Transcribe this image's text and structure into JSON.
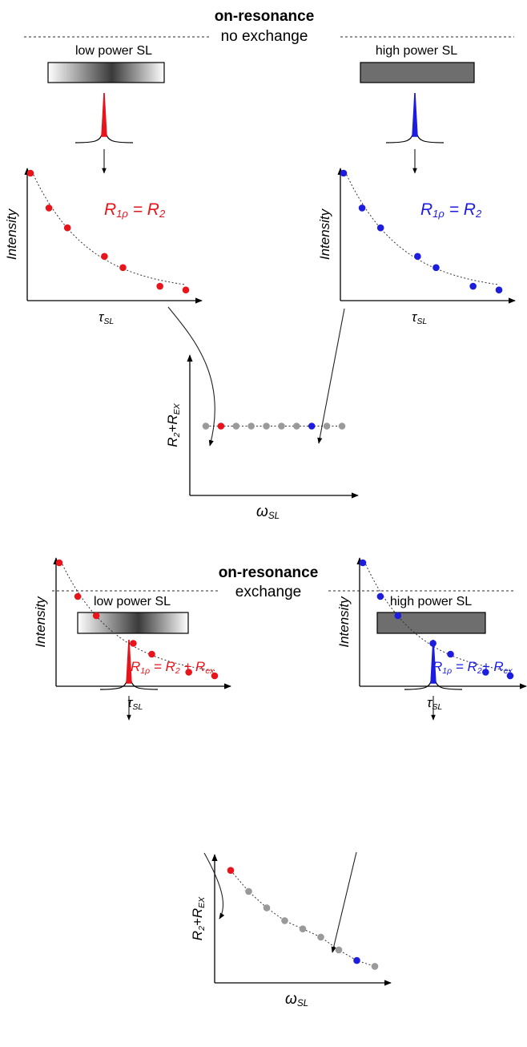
{
  "panels": [
    {
      "title": "on-resonance",
      "subtitle": "no exchange",
      "low_label": "low power SL",
      "high_label": "high power SL",
      "low_eq": {
        "lhs": "R",
        "lhs_sub": "1ρ",
        "mid": " = R",
        "mid_sub": "2",
        "tail": "",
        "tail_sub": ""
      },
      "high_eq": {
        "lhs": "R",
        "lhs_sub": "1ρ",
        "mid": " = R",
        "mid_sub": "2",
        "tail": "",
        "tail_sub": ""
      },
      "ylabel": "Intensity",
      "xlabel_main": "τ",
      "xlabel_sub": "SL",
      "disp_ylabel_main": "R",
      "disp_ylabel_sub1": "2",
      "disp_ylabel_plus": "+R",
      "disp_ylabel_sub2": "EX",
      "disp_xlabel_main": "ω",
      "disp_xlabel_sub": "SL"
    },
    {
      "title": "on-resonance",
      "subtitle": "exchange",
      "low_label": "low power SL",
      "high_label": "high power SL",
      "low_eq": {
        "lhs": "R",
        "lhs_sub": "1ρ",
        "mid": " = R",
        "mid_sub": "2",
        "tail": " + R",
        "tail_sub": "ex"
      },
      "high_eq": {
        "lhs": "R",
        "lhs_sub": "1ρ",
        "mid": " = R",
        "mid_sub": "2",
        "tail": "+ R",
        "tail_sub": "ex"
      },
      "ylabel": "Intensity",
      "xlabel_main": "τ",
      "xlabel_sub": "SL",
      "disp_ylabel_main": "R",
      "disp_ylabel_sub1": "2",
      "disp_ylabel_plus": "+R",
      "disp_ylabel_sub2": "EX",
      "disp_xlabel_main": "ω",
      "disp_xlabel_sub": "SL"
    }
  ],
  "colors": {
    "low": "#e8141b",
    "high": "#1d1de0",
    "grey": "#9a9a9a",
    "bar": "#6e6e6e"
  },
  "chart_data": [
    {
      "type": "scatter",
      "name": "panel1-low-decay",
      "x": [
        0,
        1,
        2,
        4,
        5,
        7,
        8.4
      ],
      "values": [
        100,
        72,
        56,
        33,
        24,
        9,
        6
      ]
    },
    {
      "type": "scatter",
      "name": "panel1-high-decay",
      "x": [
        0,
        1,
        2,
        4,
        5,
        7,
        8.4
      ],
      "values": [
        100,
        72,
        56,
        33,
        24,
        9,
        6
      ]
    },
    {
      "type": "scatter",
      "name": "panel1-dispersion",
      "x": [
        1,
        2,
        3,
        4,
        5,
        6,
        7,
        8,
        9,
        10
      ],
      "values": [
        50,
        50,
        50,
        50,
        50,
        50,
        50,
        50,
        50,
        50
      ],
      "highlight": {
        "low_index": 1,
        "high_index": 7
      }
    },
    {
      "type": "scatter",
      "name": "panel2-low-decay",
      "x": [
        0,
        1,
        2,
        4,
        5,
        7,
        8.4
      ],
      "values": [
        100,
        72,
        56,
        33,
        24,
        9,
        6
      ]
    },
    {
      "type": "scatter",
      "name": "panel2-high-decay",
      "x": [
        0,
        1,
        2,
        4,
        5,
        7,
        8.4
      ],
      "values": [
        100,
        72,
        56,
        33,
        24,
        9,
        6
      ]
    },
    {
      "type": "scatter",
      "name": "panel2-dispersion",
      "x": [
        1,
        2,
        3,
        4,
        5,
        6,
        7,
        8,
        9
      ],
      "values": [
        92,
        74,
        60,
        49,
        42,
        35,
        24,
        15,
        10
      ],
      "highlight": {
        "low_index": 0,
        "high_index": 7
      }
    }
  ]
}
